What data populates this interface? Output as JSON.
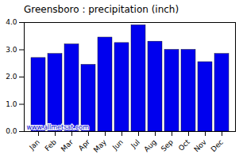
{
  "chart_data": {
    "type": "bar",
    "title": "Greensboro : precipitation (inch)",
    "categories": [
      "Jan",
      "Feb",
      "Mar",
      "Apr",
      "May",
      "Jun",
      "Jul",
      "Aug",
      "Sep",
      "Oct",
      "Nov",
      "Dec"
    ],
    "values": [
      2.7,
      2.85,
      3.2,
      2.45,
      3.45,
      3.25,
      3.9,
      3.3,
      3.0,
      3.0,
      2.55,
      2.85
    ],
    "color": "#0000EE",
    "ylim": [
      0,
      4
    ],
    "yticks": [
      0,
      1,
      2,
      3,
      4
    ],
    "grid": false,
    "annotations": [
      "www.allmetsat.com"
    ]
  }
}
